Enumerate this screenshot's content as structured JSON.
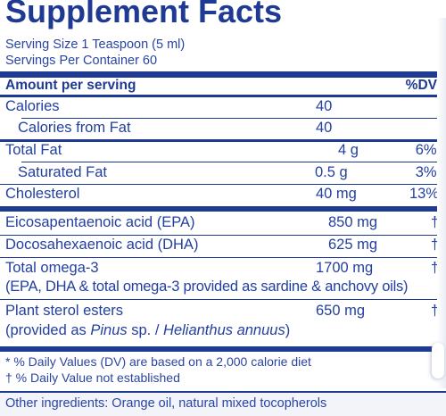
{
  "panel": {
    "title": "Supplement Facts",
    "serving_size": "Serving Size 1 Teaspoon (5 ml)",
    "servings_per_container": "Servings Per Container 60",
    "header_amount": "Amount per serving",
    "header_dv": "%DV"
  },
  "rows": [
    {
      "name": "Calories",
      "amount": "40",
      "dv": ""
    },
    {
      "name": "Calories from Fat",
      "amount": "40",
      "dv": ""
    },
    {
      "name": "Total Fat",
      "amount": "4 g",
      "dv": "6%*"
    },
    {
      "name": "Saturated Fat",
      "amount": "0.5 g",
      "dv": "3%*"
    },
    {
      "name": "Cholesterol",
      "amount": "40 mg",
      "dv": "13%"
    },
    {
      "name": "Eicosapentaenoic acid (EPA)",
      "amount": "850 mg",
      "dv": "†"
    },
    {
      "name": "Docosahexaenoic acid (DHA)",
      "amount": "625 mg",
      "dv": "†"
    },
    {
      "name": "Total omega-3",
      "amount": "1700 mg",
      "dv": "†"
    },
    {
      "name": "(EPA, DHA & total omega-3 provided as sardine & anchovy oils)",
      "amount": "",
      "dv": ""
    },
    {
      "name": "Plant sterol esters",
      "amount": "650 mg",
      "dv": "†"
    }
  ],
  "sterol_source": {
    "prefix": "(provided as ",
    "genus1": "Pinus",
    "middle": " sp. / ",
    "genus2": "Helianthus annuus",
    "suffix": ")"
  },
  "footnotes": {
    "dv_note": "* % Daily Values (DV) are based on a 2,000 calorie diet",
    "dagger_note": "† % Daily Value not established"
  },
  "other_ingredients": "Other ingredients: Orange oil, natural mixed tocopherols",
  "colors": {
    "text": "#1f3a93",
    "rule": "#1f3a93"
  }
}
